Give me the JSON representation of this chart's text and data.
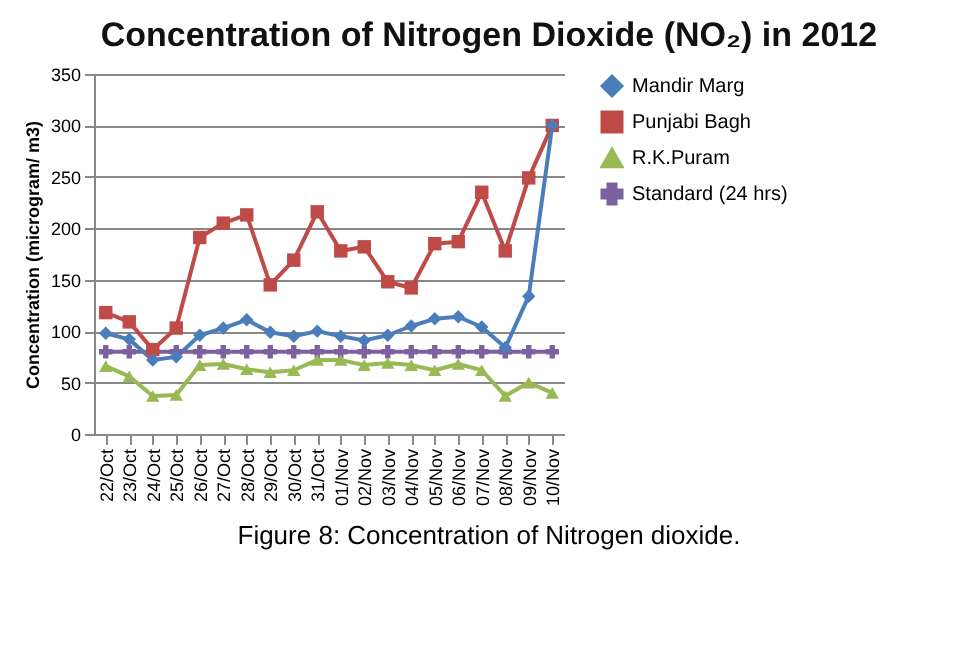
{
  "chart_data": {
    "type": "line",
    "title": "Concentration of Nitrogen Dioxide (NO₂) in 2012",
    "ylabel": "Concentration (microgram/ m3)",
    "annotations": [
      "Figure 8: Concentration of Nitrogen dioxide."
    ],
    "categories": [
      "22/Oct",
      "23/Oct",
      "24/Oct",
      "25/Oct",
      "26/Oct",
      "27/Oct",
      "28/Oct",
      "29/Oct",
      "30/Oct",
      "31/Oct",
      "01/Nov",
      "02/Nov",
      "03/Nov",
      "04/Nov",
      "05/Nov",
      "06/Nov",
      "07/Nov",
      "08/Nov",
      "09/Nov",
      "10/Nov"
    ],
    "series": [
      {
        "name": "Mandir Marg",
        "color": "#4a7ebb",
        "marker": "diamond",
        "values": [
          98,
          92,
          72,
          75,
          96,
          103,
          111,
          99,
          95,
          100,
          95,
          91,
          96,
          105,
          112,
          114,
          104,
          84,
          134,
          300
        ]
      },
      {
        "name": "Punjabi Bagh",
        "color": "#be4b48",
        "marker": "square",
        "values": [
          118,
          109,
          82,
          103,
          191,
          205,
          213,
          145,
          169,
          216,
          178,
          182,
          148,
          142,
          185,
          187,
          235,
          178,
          249,
          300
        ]
      },
      {
        "name": "R.K.Puram",
        "color": "#98b954",
        "marker": "triangle",
        "values": [
          66,
          56,
          37,
          38,
          67,
          68,
          63,
          60,
          62,
          72,
          72,
          67,
          69,
          67,
          62,
          68,
          62,
          37,
          50,
          40
        ]
      },
      {
        "name": "Standard (24 hrs)",
        "color": "#7d60a0",
        "marker": "cross",
        "values": [
          80,
          80,
          80,
          80,
          80,
          80,
          80,
          80,
          80,
          80,
          80,
          80,
          80,
          80,
          80,
          80,
          80,
          80,
          80,
          80
        ]
      }
    ],
    "ylim": [
      0,
      350
    ],
    "yticks": [
      0,
      50,
      100,
      150,
      200,
      250,
      300,
      350
    ],
    "grid": "y",
    "legend": "right",
    "line_style": "solid"
  }
}
